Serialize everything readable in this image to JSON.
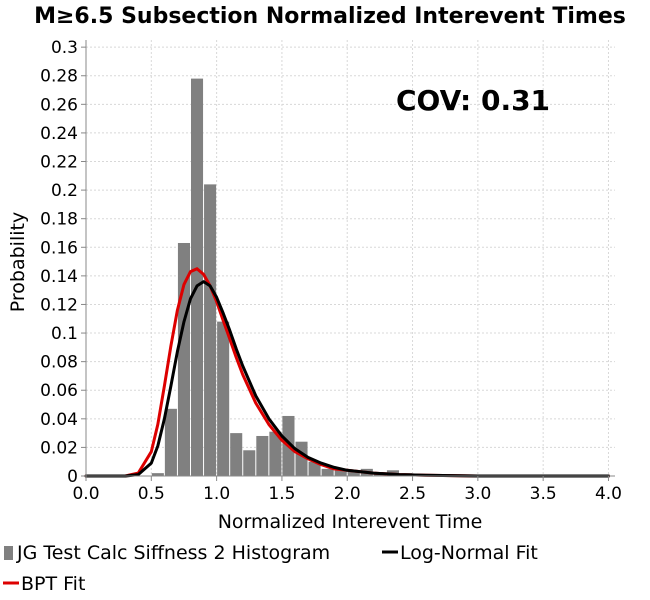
{
  "chart_data": {
    "type": "bar",
    "title": "M≥6.5 Subsection Normalized Interevent Times",
    "xlabel": "Normalized Interevent Time",
    "ylabel": "Probability",
    "xlim": [
      0,
      4.05
    ],
    "ylim": [
      0,
      0.305
    ],
    "x_ticks": [
      "0.0",
      "0.5",
      "1.0",
      "1.5",
      "2.0",
      "2.5",
      "3.0",
      "3.5",
      "4.0"
    ],
    "y_ticks": [
      "0",
      "0.02",
      "0.04",
      "0.06",
      "0.08",
      "0.1",
      "0.12",
      "0.14",
      "0.16",
      "0.18",
      "0.2",
      "0.22",
      "0.24",
      "0.26",
      "0.28",
      "0.3"
    ],
    "annotation": "COV: 0.31",
    "grid": true,
    "legend_position": "bottom",
    "histogram": {
      "name": "JG Test Calc Siffness 2 Histogram",
      "color": "#808080",
      "bin_width": 0.1,
      "bin_centers": [
        0.55,
        0.65,
        0.75,
        0.85,
        0.95,
        1.05,
        1.15,
        1.25,
        1.35,
        1.45,
        1.55,
        1.65,
        1.75,
        1.85,
        1.95,
        2.05,
        2.15,
        2.25,
        2.35,
        2.45
      ],
      "values": [
        0.002,
        0.047,
        0.163,
        0.278,
        0.204,
        0.108,
        0.03,
        0.018,
        0.028,
        0.031,
        0.042,
        0.024,
        0.01,
        0.005,
        0.004,
        0.003,
        0.005,
        0.002,
        0.004,
        0.002
      ]
    },
    "series": [
      {
        "name": "Log-Normal Fit",
        "color": "#000000",
        "x": [
          0.0,
          0.3,
          0.4,
          0.5,
          0.55,
          0.6,
          0.65,
          0.7,
          0.75,
          0.8,
          0.85,
          0.9,
          0.95,
          1.0,
          1.05,
          1.1,
          1.15,
          1.2,
          1.3,
          1.4,
          1.5,
          1.6,
          1.7,
          1.8,
          1.9,
          2.0,
          2.2,
          2.4,
          2.6,
          3.0,
          3.5,
          4.0
        ],
        "y": [
          0.0,
          0.0,
          0.001,
          0.009,
          0.021,
          0.04,
          0.063,
          0.087,
          0.108,
          0.124,
          0.133,
          0.136,
          0.133,
          0.125,
          0.114,
          0.102,
          0.089,
          0.077,
          0.056,
          0.04,
          0.028,
          0.019,
          0.013,
          0.009,
          0.006,
          0.004,
          0.002,
          0.001,
          0.0005,
          0.0,
          0.0,
          0.0
        ]
      },
      {
        "name": "BPT Fit",
        "color": "#dd0000",
        "x": [
          0.0,
          0.3,
          0.4,
          0.5,
          0.55,
          0.6,
          0.65,
          0.7,
          0.75,
          0.8,
          0.85,
          0.9,
          0.95,
          1.0,
          1.05,
          1.1,
          1.15,
          1.2,
          1.3,
          1.4,
          1.5,
          1.6,
          1.7,
          1.8,
          1.9,
          2.0,
          2.2,
          2.4,
          2.6,
          3.0,
          3.5,
          4.0
        ],
        "y": [
          0.0,
          0.0,
          0.002,
          0.017,
          0.036,
          0.063,
          0.091,
          0.116,
          0.134,
          0.143,
          0.145,
          0.141,
          0.133,
          0.122,
          0.109,
          0.096,
          0.083,
          0.071,
          0.051,
          0.036,
          0.025,
          0.017,
          0.012,
          0.008,
          0.005,
          0.004,
          0.002,
          0.001,
          0.0005,
          0.0,
          0.0,
          0.0
        ]
      }
    ]
  }
}
